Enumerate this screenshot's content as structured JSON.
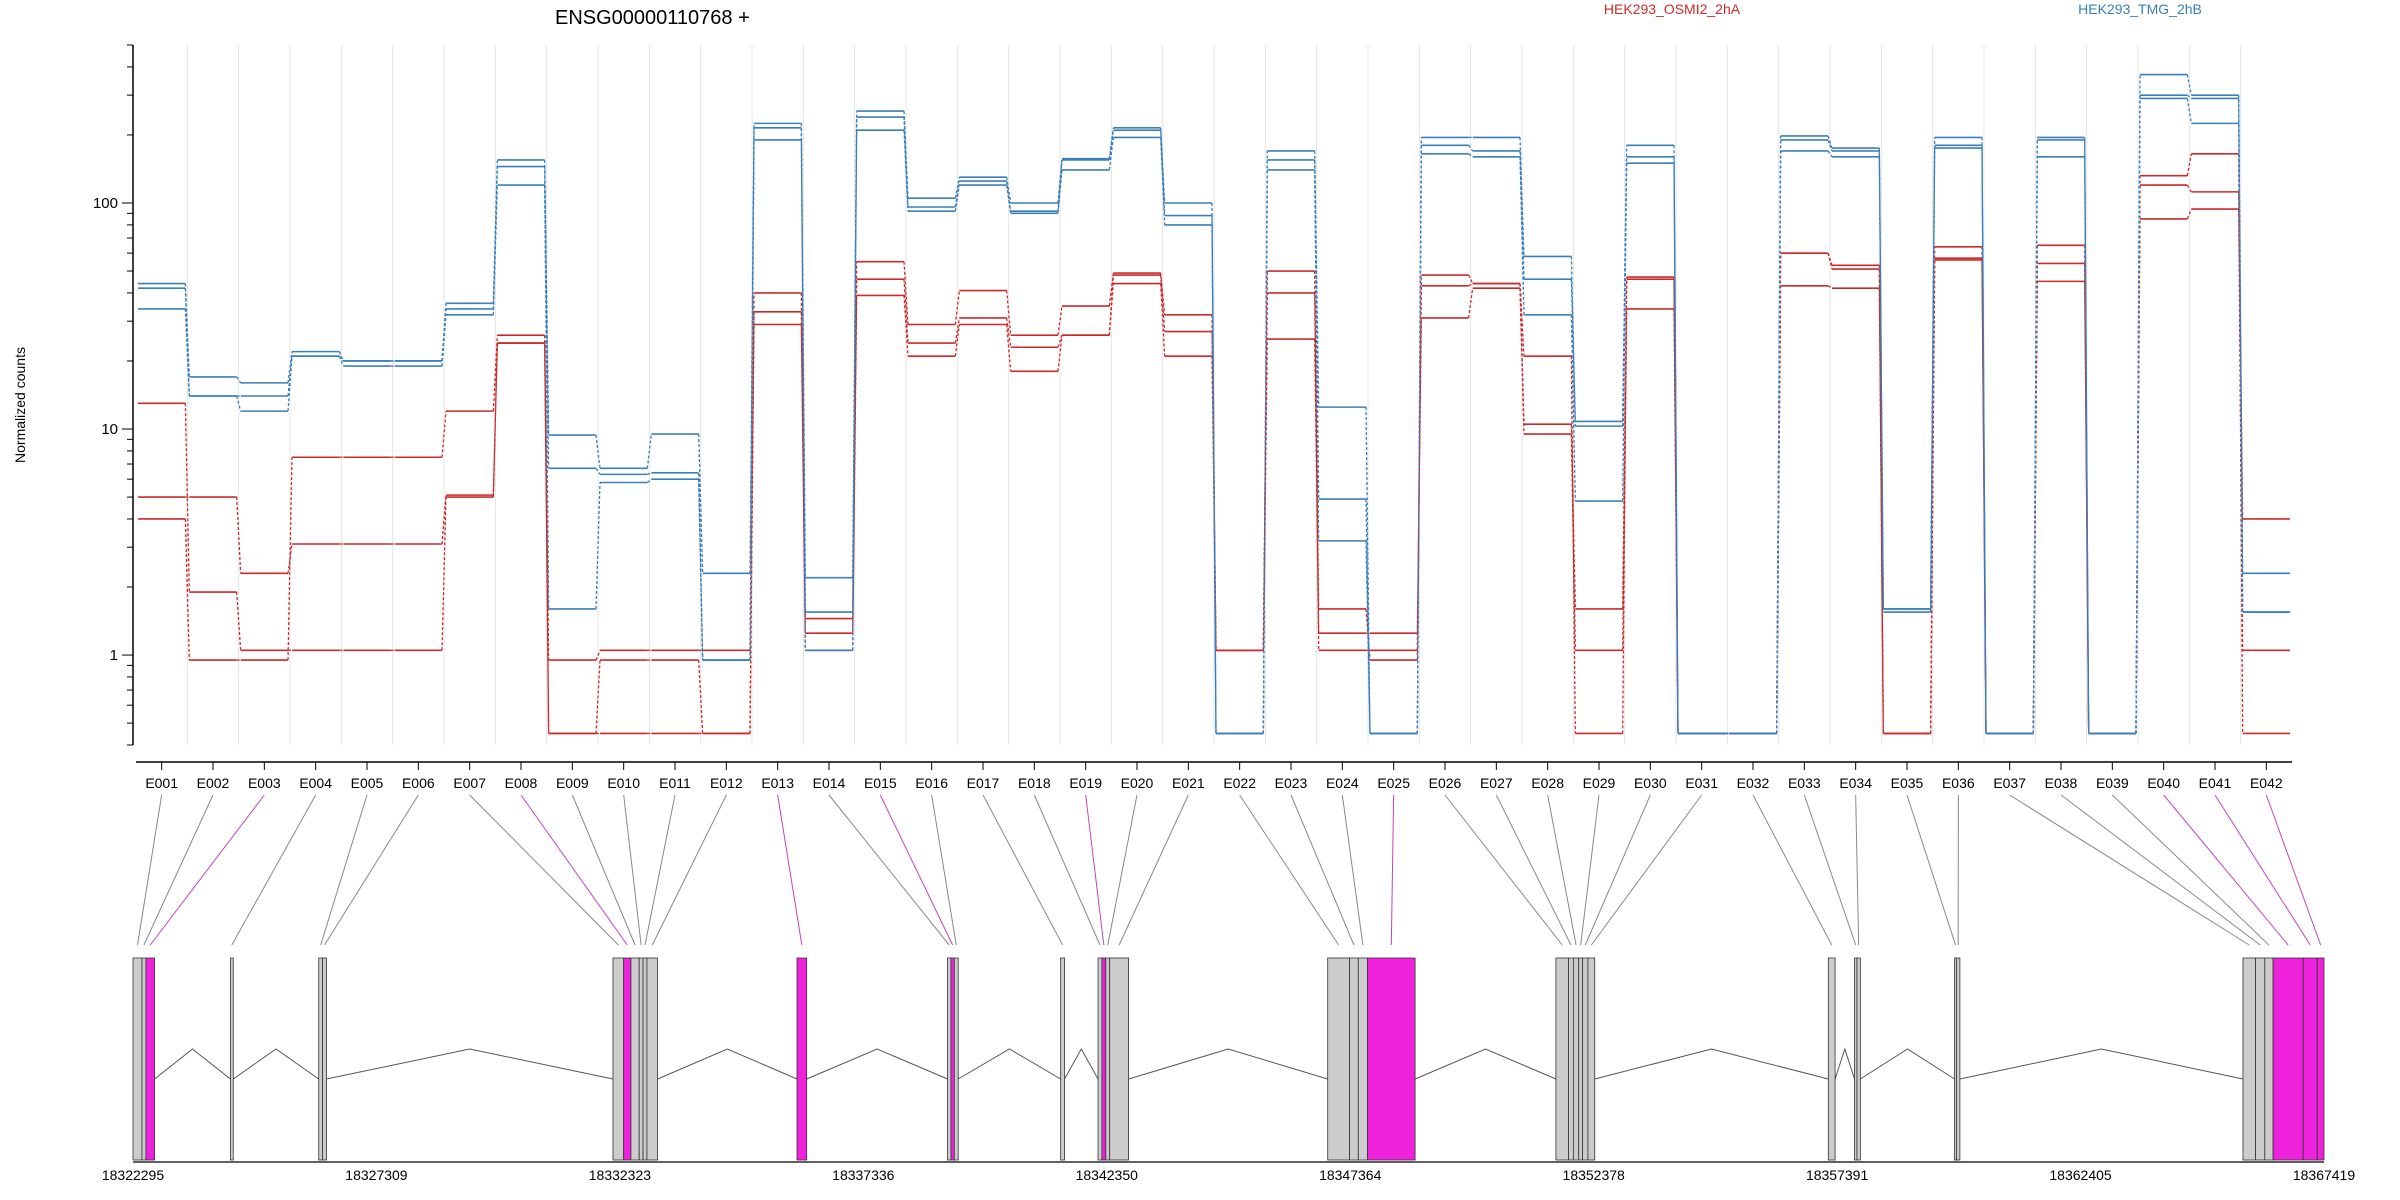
{
  "chart_data": {
    "type": "line",
    "title": "ENSG00000110768 +",
    "ylabel": "Normalized counts",
    "yscale": "log",
    "ylim": [
      0.4,
      500
    ],
    "yticks": [
      1,
      10,
      100
    ],
    "grid": "vertical lines at exon boundaries",
    "legend_placement": "top-right",
    "x": [
      "E001",
      "E002",
      "E003",
      "E004",
      "E005",
      "E006",
      "E007",
      "E008",
      "E009",
      "E010",
      "E011",
      "E012",
      "E013",
      "E014",
      "E015",
      "E016",
      "E017",
      "E018",
      "E019",
      "E020",
      "E021",
      "E022",
      "E023",
      "E024",
      "E025",
      "E026",
      "E027",
      "E028",
      "E029",
      "E030",
      "E031",
      "E032",
      "E033",
      "E034",
      "E035",
      "E036",
      "E037",
      "E038",
      "E039",
      "E040",
      "E041",
      "E042"
    ],
    "series": [
      {
        "group": "HEK293_OSMI2_2hA",
        "color": "#cc2a2a",
        "values": [
          13,
          1.9,
          1.05,
          1.05,
          1.05,
          1.05,
          5,
          24,
          0.45,
          0.45,
          0.45,
          0.45,
          29,
          1.05,
          39,
          21,
          29,
          18,
          26,
          44,
          21,
          1.05,
          25,
          1.25,
          1.25,
          31,
          42,
          9.5,
          1.05,
          34,
          0.45,
          0.45,
          43,
          42,
          0.45,
          56,
          0.45,
          45,
          0.45,
          85,
          94,
          1.05
        ]
      },
      {
        "group": "HEK293_OSMI2_2hA",
        "color": "#cc2a2a",
        "values": [
          5,
          5,
          2.3,
          3.1,
          3.1,
          3.1,
          5.1,
          24,
          0.95,
          1.05,
          1.05,
          1.05,
          33,
          1.25,
          46,
          24,
          31,
          23,
          26,
          48,
          27,
          1.05,
          40,
          1.6,
          0.95,
          43,
          44,
          10.5,
          1.6,
          46,
          0.45,
          0.45,
          60,
          51,
          0.45,
          57,
          0.45,
          54,
          0.45,
          120,
          112,
          4
        ]
      },
      {
        "group": "HEK293_OSMI2_2hA",
        "color": "#cc2a2a",
        "values": [
          4,
          0.95,
          0.95,
          7.5,
          7.5,
          7.5,
          12,
          26,
          0.45,
          0.95,
          0.95,
          0.45,
          40,
          1.45,
          55,
          29,
          41,
          26,
          35,
          49,
          32,
          1.05,
          50,
          1.05,
          1.05,
          48,
          44,
          21,
          0.45,
          47,
          0.45,
          0.45,
          60,
          53,
          0.45,
          64,
          0.45,
          65,
          0.45,
          132,
          165,
          0.45
        ]
      },
      {
        "group": "HEK293_TMG_2hB",
        "color": "#3a7fba",
        "values": [
          34,
          14,
          12,
          21,
          19,
          19,
          32,
          120,
          1.6,
          5.8,
          6,
          0.95,
          190,
          1.05,
          210,
          92,
          120,
          90,
          140,
          195,
          80,
          0.45,
          140,
          3.2,
          0.45,
          165,
          160,
          32,
          4.8,
          150,
          0.45,
          0.45,
          170,
          160,
          1.55,
          175,
          0.45,
          160,
          0.45,
          290,
          225,
          1.55
        ]
      },
      {
        "group": "HEK293_TMG_2hB",
        "color": "#3a7fba",
        "values": [
          42,
          14,
          14,
          21,
          20,
          20,
          34,
          145,
          6.7,
          6.3,
          6.4,
          0.95,
          215,
          1.55,
          240,
          96,
          125,
          92,
          155,
          210,
          88,
          0.45,
          155,
          4.9,
          0.45,
          180,
          170,
          46,
          10.3,
          160,
          0.45,
          0.45,
          190,
          170,
          1.6,
          180,
          0.45,
          190,
          0.45,
          300,
          290,
          1.55
        ]
      },
      {
        "group": "HEK293_TMG_2hB",
        "color": "#3a7fba",
        "values": [
          44,
          17,
          16,
          22,
          20,
          20,
          36,
          155,
          9.4,
          6.7,
          9.5,
          2.3,
          225,
          2.2,
          255,
          105,
          130,
          100,
          157,
          215,
          100,
          0.45,
          170,
          12.5,
          0.45,
          195,
          195,
          58,
          10.8,
          180,
          0.45,
          0.45,
          198,
          175,
          1.6,
          195,
          0.45,
          195,
          0.45,
          370,
          300,
          2.3
        ]
      }
    ],
    "legend": [
      {
        "label": "HEK293_OSMI2_2hA",
        "color": "#cc2a2a"
      },
      {
        "label": "HEK293_TMG_2hB",
        "color": "#3a7fba"
      }
    ],
    "gene_model": {
      "coordinate_range": [
        18322295,
        18367419
      ],
      "tick_labels": [
        "18322295",
        "18327309",
        "18332323",
        "18337336",
        "18342350",
        "18347364",
        "18352378",
        "18357391",
        "18362405",
        "18367419"
      ],
      "tick_values": [
        18322295,
        18327309,
        18332323,
        18337336,
        18342350,
        18347364,
        18352378,
        18357391,
        18362405,
        18367419
      ],
      "highlighted_exons": [
        "E003",
        "E008",
        "E013",
        "E015",
        "E019",
        "E025",
        "E040",
        "E041",
        "E042"
      ],
      "highlight_color": "#ee22dd",
      "exon_color": "#cccccc",
      "exon_genomic_ranges": [
        [
          18322295,
          18322480
        ],
        [
          18322480,
          18322560
        ],
        [
          18322560,
          18322740
        ],
        [
          18324300,
          18324360
        ],
        [
          18326120,
          18326200
        ],
        [
          18326200,
          18326280
        ],
        [
          18332180,
          18332400
        ],
        [
          18332400,
          18332550
        ],
        [
          18332550,
          18332720
        ],
        [
          18332720,
          18332800
        ],
        [
          18332800,
          18332880
        ],
        [
          18332880,
          18333100
        ],
        [
          18335970,
          18336170
        ],
        [
          18339070,
          18339140
        ],
        [
          18339140,
          18339210
        ],
        [
          18339210,
          18339290
        ],
        [
          18341400,
          18341480
        ],
        [
          18342170,
          18342250
        ],
        [
          18342250,
          18342330
        ],
        [
          18342330,
          18342410
        ],
        [
          18342410,
          18342800
        ],
        [
          18346900,
          18347350
        ],
        [
          18347350,
          18347530
        ],
        [
          18347530,
          18347720
        ],
        [
          18347720,
          18348700
        ],
        [
          18351600,
          18351860
        ],
        [
          18351860,
          18351960
        ],
        [
          18351960,
          18352070
        ],
        [
          18352070,
          18352150
        ],
        [
          18352150,
          18352260
        ],
        [
          18352260,
          18352400
        ],
        [
          18357210,
          18357350
        ],
        [
          18357750,
          18357800
        ],
        [
          18357800,
          18357870
        ],
        [
          18359810,
          18359850
        ],
        [
          18359850,
          18359920
        ],
        [
          18365750,
          18366010
        ],
        [
          18366010,
          18366200
        ],
        [
          18366200,
          18366370
        ],
        [
          18366370,
          18366990
        ],
        [
          18366990,
          18367280
        ],
        [
          18367280,
          18367419
        ]
      ]
    }
  }
}
